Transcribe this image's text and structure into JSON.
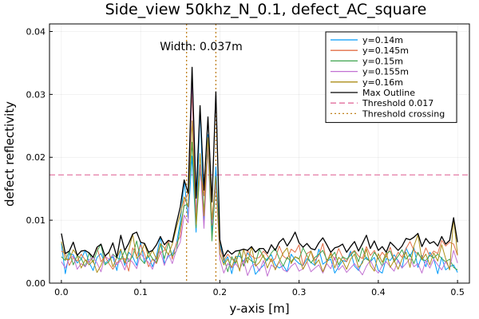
{
  "chart_data": {
    "type": "line",
    "title": "Side_view 50khz_N_0.1, defect_AC_square",
    "xlabel": "y-axis [m]",
    "ylabel": "defect reflectivity",
    "xlim": [
      -0.015,
      0.515
    ],
    "ylim": [
      0.0,
      0.0412
    ],
    "xticks": [
      0.0,
      0.1,
      0.2,
      0.3,
      0.4,
      0.5
    ],
    "xtick_labels": [
      "0.0",
      "0.1",
      "0.2",
      "0.3",
      "0.4",
      "0.5"
    ],
    "yticks": [
      0.0,
      0.01,
      0.02,
      0.03,
      0.04
    ],
    "ytick_labels": [
      "0.00",
      "0.01",
      "0.02",
      "0.03",
      "0.04"
    ],
    "grid": true,
    "legend_position": "top-right",
    "annotation": "Width: 0.037m",
    "x": [
      0.0,
      0.005,
      0.01,
      0.015,
      0.02,
      0.025,
      0.03,
      0.035,
      0.04,
      0.045,
      0.05,
      0.055,
      0.06,
      0.065,
      0.07,
      0.075,
      0.08,
      0.085,
      0.09,
      0.095,
      0.1,
      0.105,
      0.11,
      0.115,
      0.12,
      0.125,
      0.13,
      0.135,
      0.14,
      0.145,
      0.15,
      0.155,
      0.16,
      0.165,
      0.17,
      0.175,
      0.18,
      0.185,
      0.19,
      0.195,
      0.2,
      0.205,
      0.21,
      0.215,
      0.22,
      0.225,
      0.23,
      0.235,
      0.24,
      0.245,
      0.25,
      0.255,
      0.26,
      0.265,
      0.27,
      0.275,
      0.28,
      0.285,
      0.29,
      0.295,
      0.3,
      0.305,
      0.31,
      0.315,
      0.32,
      0.325,
      0.33,
      0.335,
      0.34,
      0.345,
      0.35,
      0.355,
      0.36,
      0.365,
      0.37,
      0.375,
      0.38,
      0.385,
      0.39,
      0.395,
      0.4,
      0.405,
      0.41,
      0.415,
      0.42,
      0.425,
      0.43,
      0.435,
      0.44,
      0.445,
      0.45,
      0.455,
      0.46,
      0.465,
      0.47,
      0.475,
      0.48,
      0.485,
      0.49,
      0.495,
      0.5
    ],
    "series": [
      {
        "name": "y=0.14m",
        "color": "#009AFA",
        "style": "solid",
        "values": [
          0.0063,
          0.0015,
          0.0047,
          0.0045,
          0.0032,
          0.0038,
          0.0052,
          0.0033,
          0.002,
          0.0041,
          0.0047,
          0.0031,
          0.0037,
          0.0042,
          0.002,
          0.0053,
          0.0028,
          0.0049,
          0.0042,
          0.0028,
          0.0065,
          0.0033,
          0.0043,
          0.0026,
          0.0043,
          0.0074,
          0.0031,
          0.0043,
          0.0046,
          0.0061,
          0.0097,
          0.0161,
          0.0103,
          0.0202,
          0.0081,
          0.0279,
          0.0099,
          0.0236,
          0.0079,
          0.0185,
          0.0064,
          0.0032,
          0.0042,
          0.0015,
          0.0042,
          0.0043,
          0.0034,
          0.0048,
          0.0039,
          0.0014,
          0.0022,
          0.0028,
          0.0039,
          0.0045,
          0.0029,
          0.0024,
          0.0028,
          0.0018,
          0.0046,
          0.0037,
          0.0031,
          0.0028,
          0.0039,
          0.0033,
          0.0028,
          0.0054,
          0.003,
          0.0035,
          0.0038,
          0.0016,
          0.0026,
          0.0036,
          0.0034,
          0.0051,
          0.0027,
          0.002,
          0.0035,
          0.0041,
          0.0034,
          0.0041,
          0.002,
          0.0016,
          0.0039,
          0.0036,
          0.0045,
          0.0035,
          0.0024,
          0.0056,
          0.0042,
          0.0056,
          0.0025,
          0.0044,
          0.0026,
          0.0049,
          0.0039,
          0.0015,
          0.0041,
          0.0021,
          0.0026,
          0.0029,
          0.0017
        ]
      },
      {
        "name": "y=0.145m",
        "color": "#E36F47",
        "style": "solid",
        "values": [
          0.0051,
          0.0047,
          0.0028,
          0.0041,
          0.0035,
          0.0046,
          0.0037,
          0.0033,
          0.0041,
          0.0057,
          0.0034,
          0.0043,
          0.0031,
          0.0022,
          0.0032,
          0.0038,
          0.0039,
          0.0019,
          0.0056,
          0.0043,
          0.0061,
          0.0046,
          0.0026,
          0.0038,
          0.0031,
          0.0048,
          0.0052,
          0.0068,
          0.0038,
          0.0063,
          0.0074,
          0.0129,
          0.0143,
          0.0306,
          0.0105,
          0.0188,
          0.0139,
          0.0214,
          0.0092,
          0.0159,
          0.0056,
          0.0036,
          0.0046,
          0.0038,
          0.0034,
          0.0049,
          0.0027,
          0.0052,
          0.0043,
          0.0039,
          0.0041,
          0.0051,
          0.0044,
          0.0034,
          0.0039,
          0.0059,
          0.0043,
          0.0038,
          0.0054,
          0.0049,
          0.0061,
          0.0028,
          0.0047,
          0.0051,
          0.0036,
          0.0044,
          0.0063,
          0.0033,
          0.0049,
          0.0037,
          0.0055,
          0.0041,
          0.0034,
          0.0047,
          0.0052,
          0.0043,
          0.0039,
          0.0058,
          0.0044,
          0.0052,
          0.0038,
          0.0049,
          0.0041,
          0.0057,
          0.0036,
          0.0049,
          0.0041,
          0.0055,
          0.0066,
          0.0052,
          0.0046,
          0.0039,
          0.0056,
          0.0043,
          0.0051,
          0.0047,
          0.0068,
          0.0059,
          0.0065,
          0.0062,
          0.0044
        ]
      },
      {
        "name": "y=0.15m",
        "color": "#3EA44E",
        "style": "solid",
        "values": [
          0.0042,
          0.0036,
          0.0051,
          0.0029,
          0.0044,
          0.0039,
          0.0026,
          0.0048,
          0.0033,
          0.0051,
          0.0062,
          0.0029,
          0.0034,
          0.0046,
          0.004,
          0.0038,
          0.0052,
          0.0034,
          0.0043,
          0.0067,
          0.0038,
          0.0031,
          0.0049,
          0.0039,
          0.0033,
          0.0062,
          0.0039,
          0.0064,
          0.0043,
          0.0051,
          0.0089,
          0.0123,
          0.0126,
          0.0224,
          0.0088,
          0.0181,
          0.0114,
          0.0218,
          0.0067,
          0.0162,
          0.0069,
          0.0041,
          0.0018,
          0.0042,
          0.0031,
          0.0052,
          0.0027,
          0.0041,
          0.0035,
          0.0032,
          0.0054,
          0.0041,
          0.0036,
          0.0048,
          0.0055,
          0.0039,
          0.0027,
          0.0041,
          0.0034,
          0.0042,
          0.0038,
          0.0056,
          0.0044,
          0.0032,
          0.0041,
          0.0046,
          0.0052,
          0.0037,
          0.0041,
          0.0049,
          0.0029,
          0.0042,
          0.0038,
          0.0044,
          0.0051,
          0.0034,
          0.0056,
          0.0038,
          0.0035,
          0.0049,
          0.0039,
          0.0027,
          0.0047,
          0.0051,
          0.0034,
          0.0043,
          0.0053,
          0.0038,
          0.0046,
          0.0031,
          0.0049,
          0.0037,
          0.0036,
          0.0044,
          0.004,
          0.0046,
          0.0039,
          0.0034,
          0.0038,
          0.0025,
          0.0021
        ]
      },
      {
        "name": "y=0.155m",
        "color": "#C271D2",
        "style": "solid",
        "values": [
          0.0034,
          0.0024,
          0.0039,
          0.0043,
          0.0022,
          0.0031,
          0.0026,
          0.0037,
          0.0041,
          0.0032,
          0.0018,
          0.0043,
          0.0038,
          0.0045,
          0.0029,
          0.0036,
          0.0021,
          0.0039,
          0.0033,
          0.0023,
          0.0047,
          0.0039,
          0.0033,
          0.0022,
          0.0042,
          0.0051,
          0.0028,
          0.0047,
          0.0031,
          0.0052,
          0.0065,
          0.0108,
          0.0096,
          0.0326,
          0.0112,
          0.0188,
          0.0087,
          0.0221,
          0.0095,
          0.0161,
          0.0038,
          0.0016,
          0.0031,
          0.0024,
          0.0031,
          0.0022,
          0.0036,
          0.0012,
          0.0027,
          0.0031,
          0.0019,
          0.0036,
          0.0011,
          0.0029,
          0.0024,
          0.0034,
          0.0021,
          0.0018,
          0.0027,
          0.0032,
          0.0019,
          0.0023,
          0.0034,
          0.0018,
          0.0024,
          0.0029,
          0.0016,
          0.0031,
          0.0023,
          0.0041,
          0.0021,
          0.0028,
          0.0017,
          0.0024,
          0.0031,
          0.0022,
          0.0013,
          0.0027,
          0.0036,
          0.0023,
          0.0016,
          0.0028,
          0.0034,
          0.0026,
          0.0019,
          0.0037,
          0.0024,
          0.0031,
          0.0039,
          0.0026,
          0.0031,
          0.0016,
          0.0036,
          0.0024,
          0.0038,
          0.0029,
          0.0021,
          0.0034,
          0.0024,
          0.0052,
          0.0032
        ]
      },
      {
        "name": "y=0.16m",
        "color": "#AC8E18",
        "style": "solid",
        "values": [
          0.0066,
          0.0038,
          0.0037,
          0.0053,
          0.0044,
          0.0024,
          0.0037,
          0.0029,
          0.0036,
          0.0017,
          0.0028,
          0.0043,
          0.0049,
          0.0026,
          0.0041,
          0.0054,
          0.0032,
          0.0052,
          0.0078,
          0.0039,
          0.0046,
          0.0063,
          0.0041,
          0.0052,
          0.0038,
          0.0063,
          0.0056,
          0.0045,
          0.0062,
          0.0087,
          0.0109,
          0.0137,
          0.0121,
          0.0258,
          0.0093,
          0.0206,
          0.0107,
          0.0231,
          0.0101,
          0.0169,
          0.0047,
          0.0029,
          0.0038,
          0.0025,
          0.0043,
          0.0019,
          0.0054,
          0.0032,
          0.0058,
          0.0027,
          0.0033,
          0.0045,
          0.0024,
          0.0039,
          0.0021,
          0.0035,
          0.0048,
          0.0056,
          0.0031,
          0.0042,
          0.0039,
          0.0022,
          0.0034,
          0.0051,
          0.0029,
          0.0037,
          0.0018,
          0.0033,
          0.0047,
          0.0024,
          0.0041,
          0.0035,
          0.0022,
          0.0038,
          0.0046,
          0.0025,
          0.0032,
          0.0054,
          0.0028,
          0.0019,
          0.0047,
          0.0033,
          0.0048,
          0.0025,
          0.0036,
          0.0022,
          0.0038,
          0.0049,
          0.0025,
          0.0059,
          0.0077,
          0.0037,
          0.0046,
          0.0029,
          0.0048,
          0.0035,
          0.0061,
          0.0039,
          0.0021,
          0.0103,
          0.0045
        ]
      },
      {
        "name": "Max Outline",
        "color": "#000000",
        "style": "solid",
        "values": [
          0.0079,
          0.0047,
          0.0051,
          0.0065,
          0.0044,
          0.0051,
          0.0052,
          0.0048,
          0.0041,
          0.0057,
          0.0062,
          0.0043,
          0.0049,
          0.0064,
          0.0041,
          0.0076,
          0.0052,
          0.0063,
          0.0078,
          0.0081,
          0.0065,
          0.0063,
          0.0049,
          0.0052,
          0.0061,
          0.0074,
          0.0061,
          0.0068,
          0.0065,
          0.0094,
          0.0121,
          0.0164,
          0.0143,
          0.0343,
          0.0135,
          0.0282,
          0.0148,
          0.0264,
          0.0129,
          0.0304,
          0.0069,
          0.0042,
          0.0052,
          0.0046,
          0.0051,
          0.0052,
          0.0054,
          0.0052,
          0.0058,
          0.0049,
          0.0055,
          0.0055,
          0.0047,
          0.0061,
          0.0052,
          0.0065,
          0.0071,
          0.0059,
          0.0069,
          0.0081,
          0.0064,
          0.0057,
          0.0063,
          0.0055,
          0.0053,
          0.0064,
          0.0072,
          0.0061,
          0.0049,
          0.0056,
          0.0058,
          0.0062,
          0.0049,
          0.0058,
          0.0066,
          0.0051,
          0.0063,
          0.0076,
          0.0055,
          0.0067,
          0.0052,
          0.0058,
          0.0049,
          0.0065,
          0.0059,
          0.0052,
          0.0059,
          0.0071,
          0.0069,
          0.0073,
          0.0079,
          0.0058,
          0.0071,
          0.0063,
          0.0066,
          0.0059,
          0.0074,
          0.0062,
          0.0068,
          0.0104,
          0.0065
        ]
      }
    ],
    "threshold": {
      "name": "Threshold 0.017",
      "value": 0.0172,
      "color": "#E26F9D",
      "style": "dashed"
    },
    "threshold_crossing": {
      "name": "Threshold crossing",
      "x": [
        0.158,
        0.195
      ],
      "color": "#C0801A",
      "style": "dotted"
    }
  }
}
